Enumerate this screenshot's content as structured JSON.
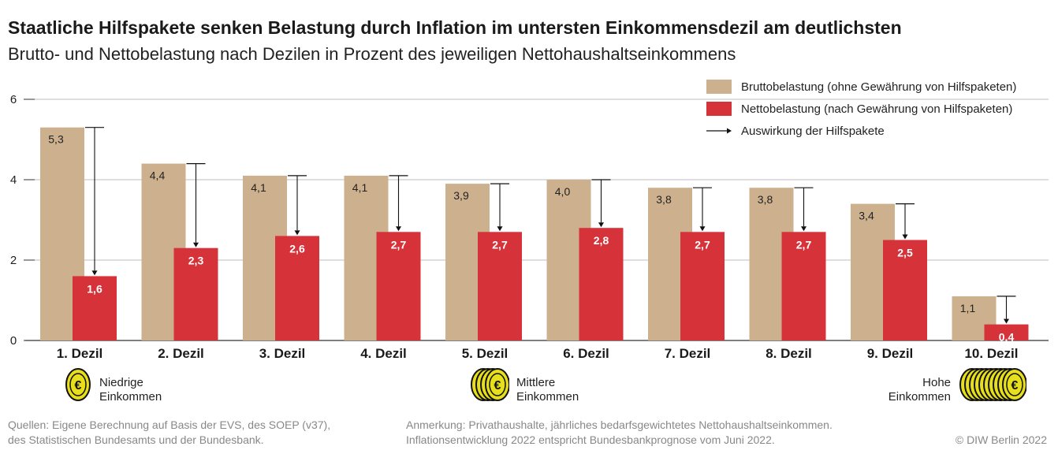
{
  "title": "Staatliche Hilfspakete senken Belastung durch Inflation im untersten Einkommensdezil am deutlichsten",
  "subtitle": "Brutto- und Nettobelastung nach Dezilen in Prozent des jeweiligen Nettohaushaltseinkommens",
  "colors": {
    "brutto": "#cdb18f",
    "netto": "#d5323a",
    "grid": "#bdbdbd",
    "coin": "#e6df1a"
  },
  "legend": {
    "brutto": "Bruttobelastung (ohne Gewährung von Hilfspaketen)",
    "netto": "Nettobelastung (nach Gewährung von Hilfspaketen)",
    "arrow": "Auswirkung der Hilfspakete"
  },
  "income_groups": {
    "low": {
      "line1": "Niedrige",
      "line2": "Einkommen"
    },
    "mid": {
      "line1": "Mittlere",
      "line2": "Einkommen"
    },
    "high": {
      "line1": "Hohe",
      "line2": "Einkommen"
    }
  },
  "footer": {
    "source1": "Quellen: Eigene Berechnung auf Basis der EVS, des SOEP (v37),",
    "source2": "des Statistischen Bundesamts und der Bundesbank.",
    "note1": "Anmerkung: Privathaushalte, jährliches bedarfsgewichtetes Nettohaushaltseinkommen.",
    "note2": "Inflationsentwicklung 2022 entspricht Bundesbankprognose vom Juni 2022.",
    "copyright": "© DIW Berlin 2022"
  },
  "chart_data": {
    "type": "bar",
    "categories": [
      "1. Dezil",
      "2. Dezil",
      "3. Dezil",
      "4. Dezil",
      "5. Dezil",
      "6. Dezil",
      "7. Dezil",
      "8. Dezil",
      "9. Dezil",
      "10. Dezil"
    ],
    "series": [
      {
        "name": "Bruttobelastung (ohne Gewährung von Hilfspaketen)",
        "values": [
          5.3,
          4.4,
          4.1,
          4.1,
          3.9,
          4.0,
          3.8,
          3.8,
          3.4,
          1.1
        ],
        "labels": [
          "5,3",
          "4,4",
          "4,1",
          "4,1",
          "3,9",
          "4,0",
          "3,8",
          "3,8",
          "3,4",
          "1,1"
        ]
      },
      {
        "name": "Nettobelastung (nach Gewährung von Hilfspaketen)",
        "values": [
          1.6,
          2.3,
          2.6,
          2.7,
          2.7,
          2.8,
          2.7,
          2.7,
          2.5,
          0.4
        ],
        "labels": [
          "1,6",
          "2,3",
          "2,6",
          "2,7",
          "2,7",
          "2,8",
          "2,7",
          "2,7",
          "2,5",
          "0,4"
        ]
      }
    ],
    "yticks": [
      0,
      2,
      4,
      6
    ],
    "ylim": [
      0,
      6
    ],
    "grid": true,
    "legend_position": "top-right"
  }
}
